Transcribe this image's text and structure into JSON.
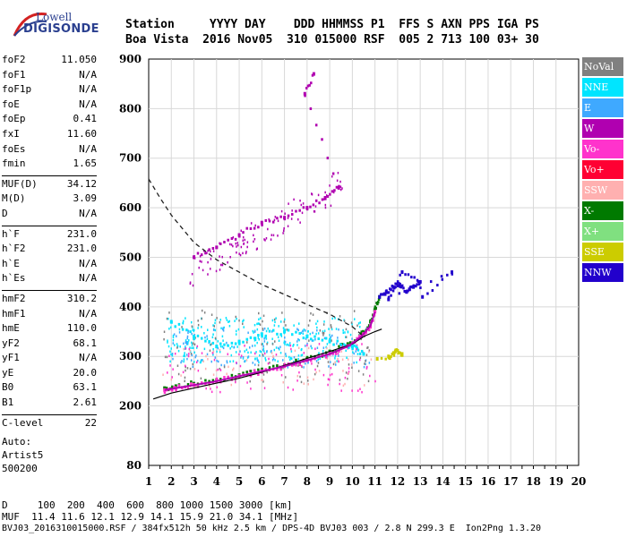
{
  "logo": {
    "line1": "Lowell",
    "line2": "DIGISONDE"
  },
  "header": {
    "line1": "Station     YYYY DAY    DDD HHMMSS P1  FFS S AXN PPS IGA PS",
    "line2": "Boa Vista  2016 Nov05  310 015000 RSF  005 2 713 100 03+ 30"
  },
  "params": [
    {
      "label": "foF2",
      "value": "11.050"
    },
    {
      "label": "foF1",
      "value": "N/A"
    },
    {
      "label": "foF1p",
      "value": "N/A"
    },
    {
      "label": "foE",
      "value": "N/A"
    },
    {
      "label": "foEp",
      "value": "0.41"
    },
    {
      "label": "fxI",
      "value": "11.60"
    },
    {
      "label": "foEs",
      "value": "N/A"
    },
    {
      "label": "fmin",
      "value": "1.65"
    },
    {
      "label": "MUF(D)",
      "value": "34.12"
    },
    {
      "label": "M(D)",
      "value": "3.09"
    },
    {
      "label": "D",
      "value": "N/A"
    },
    {
      "label": "h`F",
      "value": "231.0"
    },
    {
      "label": "h`F2",
      "value": "231.0"
    },
    {
      "label": "h`E",
      "value": "N/A"
    },
    {
      "label": "h`Es",
      "value": "N/A"
    },
    {
      "label": "hmF2",
      "value": "310.2"
    },
    {
      "label": "hmF1",
      "value": "N/A"
    },
    {
      "label": "hmE",
      "value": "110.0"
    },
    {
      "label": "yF2",
      "value": "68.1"
    },
    {
      "label": "yF1",
      "value": "N/A"
    },
    {
      "label": "yE",
      "value": "20.0"
    },
    {
      "label": "B0",
      "value": "63.1"
    },
    {
      "label": "B1",
      "value": "2.61"
    },
    {
      "label": "C-level",
      "value": "22"
    }
  ],
  "auto": {
    "line1": "Auto:",
    "line2": "Artist5",
    "line3": "500200"
  },
  "legend": [
    {
      "label": "NoVal",
      "color": "#808080"
    },
    {
      "label": "NNE",
      "color": "#00e5ff"
    },
    {
      "label": "E",
      "color": "#3fa9ff"
    },
    {
      "label": "W",
      "color": "#b000b0"
    },
    {
      "label": "Vo-",
      "color": "#ff33cc"
    },
    {
      "label": "Vo+",
      "color": "#ff0033"
    },
    {
      "label": "SSW",
      "color": "#ffb0b0"
    },
    {
      "label": "X-",
      "color": "#007a00"
    },
    {
      "label": "X+",
      "color": "#80e080"
    },
    {
      "label": "SSE",
      "color": "#cccc00"
    },
    {
      "label": "NNW",
      "color": "#2200cc"
    }
  ],
  "footer": {
    "line1": "D     100  200  400  600  800 1000 1500 3000 [km]",
    "line2": "MUF  11.4 11.6 12.1 12.9 14.1 15.9 21.0 34.1 [MHz]",
    "line3": "BVJ03_2016310015000.RSF / 384fx512h 50 kHz 2.5 km / DPS-4D BVJ03 003 / 2.8 N 299.3 E  Ion2Png 1.3.20"
  },
  "chart_data": {
    "type": "scatter",
    "xlim": [
      1,
      20
    ],
    "ylim": [
      80,
      900
    ],
    "x_ticks": [
      1,
      2,
      3,
      4,
      5,
      6,
      7,
      8,
      9,
      10,
      11,
      12,
      13,
      14,
      15,
      16,
      17,
      18,
      19,
      20
    ],
    "y_ticks": [
      80,
      200,
      300,
      400,
      500,
      600,
      700,
      800,
      900
    ],
    "grid": true,
    "legend_position": "right",
    "series": [
      {
        "name": "X-",
        "points": [
          [
            1.7,
            236
          ],
          [
            2.2,
            240
          ],
          [
            3,
            245
          ],
          [
            4,
            252
          ],
          [
            5,
            262
          ],
          [
            6,
            272
          ],
          [
            7,
            282
          ],
          [
            8,
            295
          ],
          [
            9,
            310
          ],
          [
            9.8,
            325
          ],
          [
            10.4,
            345
          ],
          [
            10.8,
            370
          ],
          [
            11,
            395
          ],
          [
            11.2,
            420
          ]
        ]
      },
      {
        "name": "Vo-",
        "points": [
          [
            1.7,
            232
          ],
          [
            2.2,
            236
          ],
          [
            3,
            242
          ],
          [
            4,
            250
          ],
          [
            5,
            260
          ],
          [
            6,
            270
          ],
          [
            7,
            280
          ],
          [
            8,
            292
          ],
          [
            9,
            305
          ],
          [
            9.8,
            320
          ],
          [
            10.4,
            340
          ],
          [
            10.8,
            362
          ],
          [
            11,
            390
          ]
        ]
      },
      {
        "name": "NNW",
        "points": [
          [
            11.2,
            420
          ],
          [
            11.5,
            430
          ],
          [
            11.8,
            440
          ],
          [
            12.1,
            445
          ],
          [
            12.4,
            430
          ],
          [
            12.7,
            440
          ],
          [
            13,
            450
          ],
          [
            12.2,
            470
          ],
          [
            11.6,
            415
          ],
          [
            14.4,
            470
          ],
          [
            13.1,
            420
          ]
        ]
      },
      {
        "name": "NNE",
        "points": [
          [
            2,
            370
          ],
          [
            3,
            340
          ],
          [
            4,
            320
          ],
          [
            5,
            330
          ],
          [
            6,
            345
          ],
          [
            7,
            350
          ],
          [
            8,
            340
          ],
          [
            9,
            330
          ],
          [
            10,
            320
          ],
          [
            10.5,
            305
          ]
        ]
      },
      {
        "name": "SSE",
        "points": [
          [
            11.6,
            300
          ],
          [
            11.9,
            310
          ],
          [
            12.2,
            305
          ],
          [
            11.1,
            295
          ]
        ]
      },
      {
        "name": "W",
        "points": [
          [
            3,
            500
          ],
          [
            4,
            520
          ],
          [
            5,
            545
          ],
          [
            6,
            570
          ],
          [
            7,
            580
          ],
          [
            8,
            600
          ],
          [
            8.8,
            620
          ],
          [
            9.4,
            640
          ],
          [
            7.9,
            830
          ],
          [
            8.3,
            870
          ]
        ]
      }
    ],
    "profile_curve": [
      [
        1,
        658
      ],
      [
        1.5,
        620
      ],
      [
        2,
        585
      ],
      [
        3,
        530
      ],
      [
        4,
        495
      ],
      [
        5,
        470
      ],
      [
        6,
        445
      ],
      [
        7,
        425
      ],
      [
        8,
        405
      ],
      [
        9,
        385
      ],
      [
        10,
        360
      ],
      [
        10.5,
        340
      ]
    ],
    "trace_curve": [
      [
        1.2,
        214
      ],
      [
        2,
        226
      ],
      [
        3,
        236
      ],
      [
        4,
        246
      ],
      [
        5,
        256
      ],
      [
        6,
        268
      ],
      [
        7,
        282
      ],
      [
        8,
        296
      ],
      [
        9,
        310
      ],
      [
        10,
        325
      ],
      [
        10.5,
        340
      ],
      [
        11,
        350
      ],
      [
        11.3,
        355
      ]
    ]
  }
}
